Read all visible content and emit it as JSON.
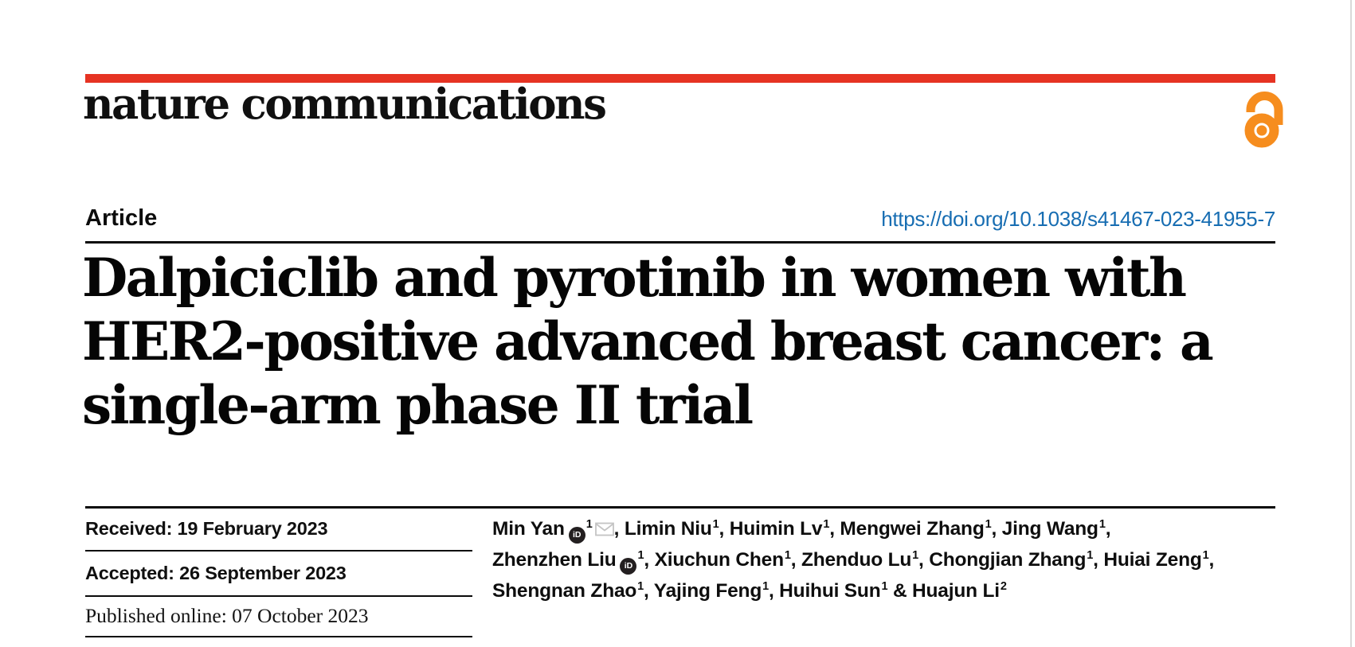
{
  "masthead": {
    "logo_text": "nature communications",
    "open_access_icon": "open-access-padlock"
  },
  "article_bar": {
    "article_label": "Article",
    "doi_text": "https://doi.org/10.1038/s41467-023-41955-7"
  },
  "title": {
    "lines": [
      "Dalpiciclib and pyrotinib in women with",
      "HER2-positive advanced breast cancer: a",
      "single-arm phase II trial"
    ]
  },
  "history": {
    "rows": [
      {
        "text": "Received: 19 February 2023"
      },
      {
        "text": "Accepted: 26 September 2023"
      },
      {
        "text": "Published online: 07 October 2023"
      }
    ]
  },
  "authors": {
    "lines": [
      [
        {
          "text": "Min Yan"
        },
        {
          "icon": "orcid"
        },
        {
          "sup": "1"
        },
        {
          "icon": "email"
        },
        {
          "text": ", Limin Niu"
        },
        {
          "sup": "1"
        },
        {
          "text": ", Huimin Lv"
        },
        {
          "sup": "1"
        },
        {
          "text": ", Mengwei Zhang"
        },
        {
          "sup": "1"
        },
        {
          "text": ", Jing Wang"
        },
        {
          "sup": "1"
        },
        {
          "text": ","
        }
      ],
      [
        {
          "text": "Zhenzhen Liu"
        },
        {
          "icon": "orcid"
        },
        {
          "sup": "1"
        },
        {
          "text": ", Xiuchun Chen"
        },
        {
          "sup": "1"
        },
        {
          "text": ", Zhenduo Lu"
        },
        {
          "sup": "1"
        },
        {
          "text": ", Chongjian Zhang"
        },
        {
          "sup": "1"
        },
        {
          "text": ", Huiai Zeng"
        },
        {
          "sup": "1"
        },
        {
          "text": ","
        }
      ],
      [
        {
          "text": "Shengnan Zhao"
        },
        {
          "sup": "1"
        },
        {
          "text": ", Yajing Feng"
        },
        {
          "sup": "1"
        },
        {
          "text": ", Huihui Sun"
        },
        {
          "sup": "1"
        },
        {
          "text": " & Huajun Li"
        },
        {
          "sup": "2"
        }
      ]
    ],
    "orcid_icon_label": "iD"
  },
  "colors": {
    "brand_red": "#e63323",
    "open_access_orange": "#f68d1e",
    "link_blue": "#176db2",
    "text_black": "#0b0b0b",
    "orcid_black": "#231f20",
    "envelope_gray": "#c4c4c4",
    "page_edge_gray": "#d9d9d9"
  }
}
